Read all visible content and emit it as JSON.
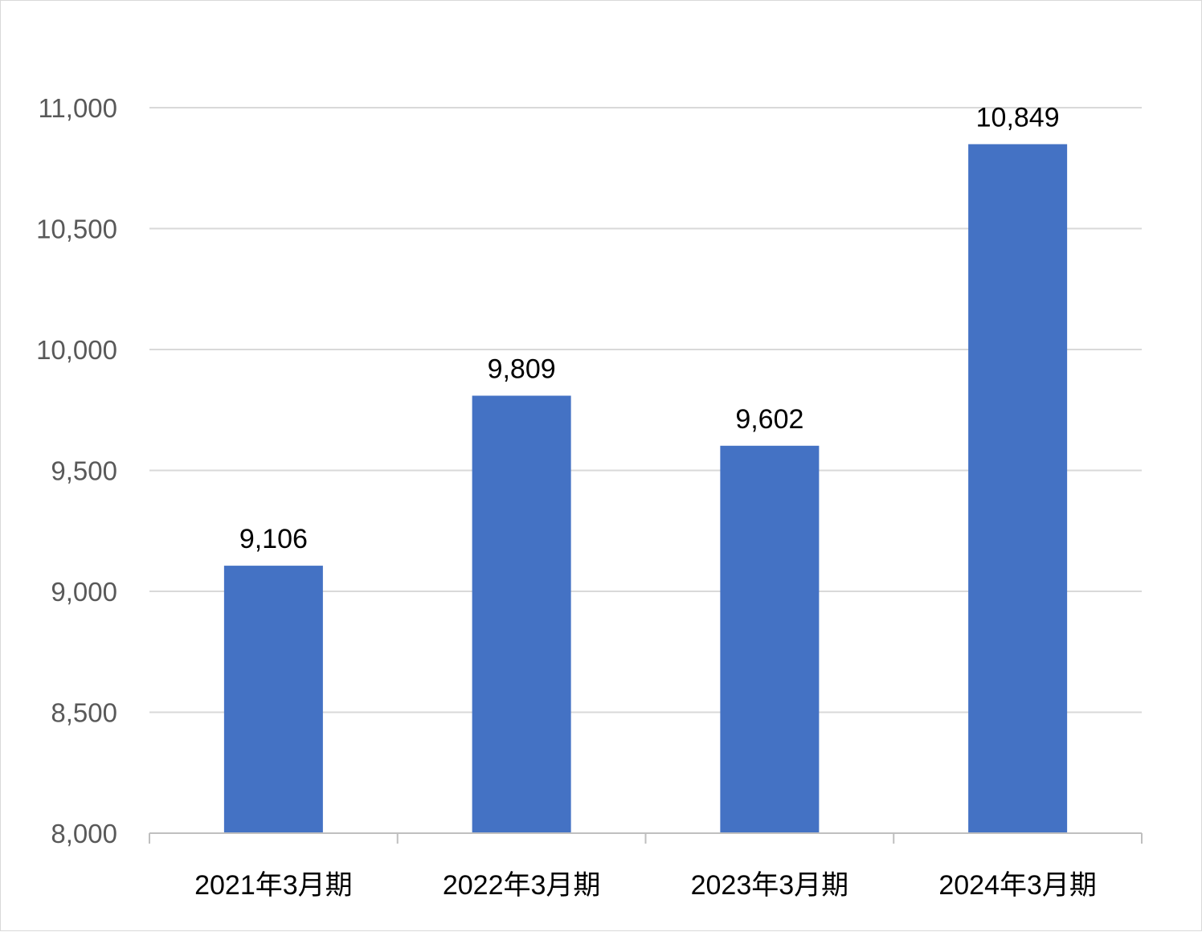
{
  "chart_data": {
    "type": "bar",
    "categories": [
      "2021年3月期",
      "2022年3月期",
      "2023年3月期",
      "2024年3月期"
    ],
    "values": [
      9106,
      9809,
      9602,
      10849
    ],
    "data_labels": [
      "9,106",
      "9,809",
      "9,602",
      "10,849"
    ],
    "ylim": [
      8000,
      11000
    ],
    "yticks": [
      8000,
      8500,
      9000,
      9500,
      10000,
      10500,
      11000
    ],
    "ytick_labels": [
      "8,000",
      "8,500",
      "9,000",
      "9,500",
      "10,000",
      "10,500",
      "11,000"
    ],
    "grid": true,
    "legend": "none",
    "colors": {
      "bar": "#4472c4",
      "grid": "#d9d9d9",
      "axis": "#bfbfbf",
      "tick_text": "#595959",
      "label_text": "#000000"
    }
  }
}
